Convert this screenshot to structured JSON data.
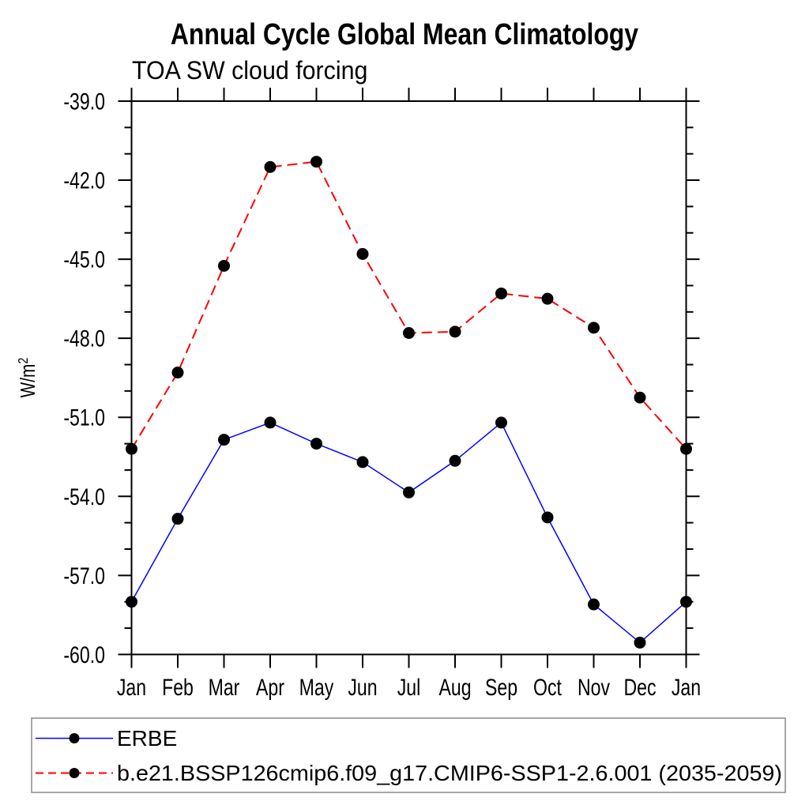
{
  "chart_data": {
    "type": "line",
    "title": "Annual Cycle Global Mean Climatology",
    "subtitle": "TOA SW cloud forcing",
    "ylabel": "W/m²",
    "ylabel_base": "W/m",
    "ylabel_exp": "2",
    "categories": [
      "Jan",
      "Feb",
      "Mar",
      "Apr",
      "May",
      "Jun",
      "Jul",
      "Aug",
      "Sep",
      "Oct",
      "Nov",
      "Dec",
      "Jan"
    ],
    "series": [
      {
        "name": "ERBE",
        "color": "#0000ff",
        "line_style": "solid",
        "marker": "circle",
        "marker_color": "#000000",
        "values": [
          -58.0,
          -54.85,
          -51.85,
          -51.2,
          -52.0,
          -52.7,
          -53.85,
          -52.65,
          -51.2,
          -54.8,
          -58.1,
          -59.55,
          -58.0
        ]
      },
      {
        "name": "b.e21.BSSP126cmip6.f09_g17.CMIP6-SSP1-2.6.001 (2035-2059)",
        "color": "#ff0000",
        "line_style": "dashed",
        "marker": "circle",
        "marker_color": "#000000",
        "values": [
          -52.2,
          -49.3,
          -45.25,
          -41.5,
          -41.3,
          -44.8,
          -47.8,
          -47.75,
          -46.3,
          -46.5,
          -47.6,
          -50.25,
          -52.2
        ]
      }
    ],
    "ylim": [
      -60.0,
      -39.0
    ],
    "ytick_major_step": 3,
    "ytick_minor_step": 1,
    "ytick_labels": [
      "-39.0",
      "-42.0",
      "-45.0",
      "-48.0",
      "-51.0",
      "-54.0",
      "-57.0",
      "-60.0"
    ],
    "grid": false,
    "legend_position": "bottom"
  }
}
